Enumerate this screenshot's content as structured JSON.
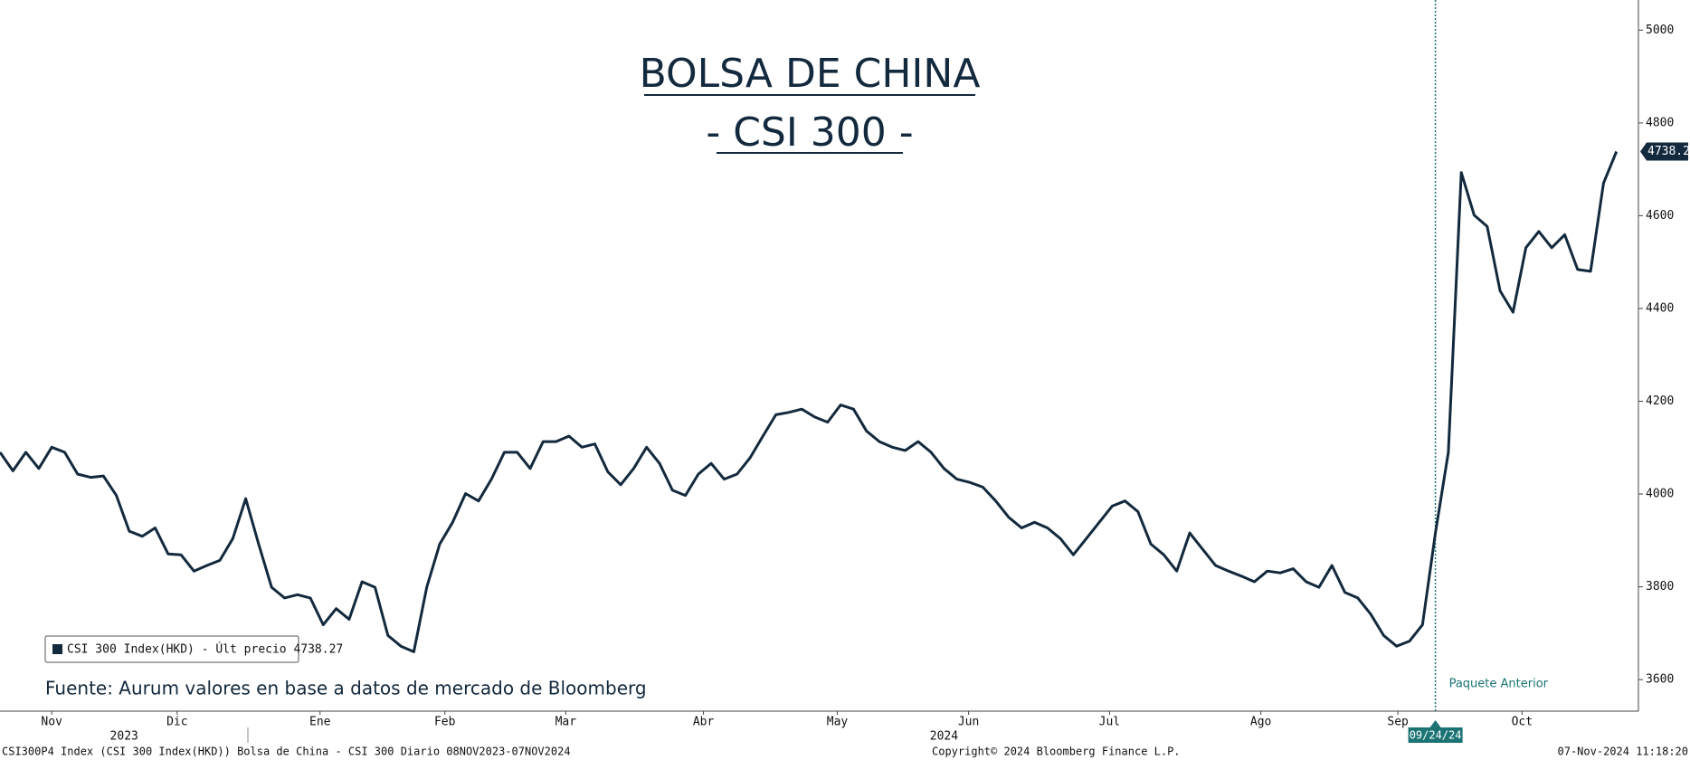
{
  "chart_data": {
    "type": "line",
    "title": "BOLSA DE CHINA",
    "subtitle": "- CSI 300 -",
    "series": [
      {
        "name": "CSI 300 Index(HKD) - Últ precio 4738.27",
        "color": "#13293d",
        "values": [
          4090,
          4050,
          4090,
          4055,
          4101,
          4090,
          4043,
          4036,
          4039,
          3997,
          3920,
          3909,
          3927,
          3871,
          3869,
          3834,
          3846,
          3857,
          3904,
          3990,
          3892,
          3799,
          3776,
          3783,
          3776,
          3718,
          3753,
          3730,
          3811,
          3799,
          3695,
          3672,
          3660,
          3799,
          3892,
          3939,
          4001,
          3985,
          4032,
          4090,
          4090,
          4055,
          4113,
          4113,
          4125,
          4101,
          4108,
          4048,
          4020,
          4055,
          4101,
          4066,
          4008,
          3997,
          4043,
          4066,
          4032,
          4043,
          4078,
          4125,
          4171,
          4176,
          4183,
          4166,
          4155,
          4192,
          4183,
          4136,
          4113,
          4101,
          4094,
          4113,
          4090,
          4055,
          4032,
          4025,
          4015,
          3985,
          3950,
          3927,
          3939,
          3927,
          3904,
          3869,
          3904,
          3939,
          3974,
          3985,
          3962,
          3892,
          3869,
          3834,
          3916,
          3881,
          3846,
          3834,
          3823,
          3811,
          3834,
          3830,
          3839,
          3811,
          3799,
          3846,
          3788,
          3776,
          3741,
          3695,
          3672,
          3683,
          3718,
          3916,
          4090,
          4693,
          4601,
          4577,
          4438,
          4392,
          4531,
          4566,
          4531,
          4559,
          4484,
          4480,
          4670,
          4738.27
        ]
      }
    ],
    "xlim": [
      0,
      126.7
    ],
    "xticks": [
      {
        "value": 4,
        "label": "Nov"
      },
      {
        "value": 13.7,
        "label": "Dic"
      },
      {
        "value": 24.75,
        "label": "Ene"
      },
      {
        "value": 34.4,
        "label": "Feb"
      },
      {
        "value": 43.75,
        "label": "Mar"
      },
      {
        "value": 54.4,
        "label": "Abr"
      },
      {
        "value": 64.75,
        "label": "May"
      },
      {
        "value": 74.9,
        "label": "Jun"
      },
      {
        "value": 85.8,
        "label": "Jul"
      },
      {
        "value": 97.5,
        "label": "Ago"
      },
      {
        "value": 108.1,
        "label": "Sep"
      },
      {
        "value": 117.7,
        "label": "Oct"
      }
    ],
    "years": [
      {
        "value": 9.6,
        "label": "2023"
      },
      {
        "value": 73,
        "label": "2024"
      }
    ],
    "ylim": [
      3532,
      5065
    ],
    "yticks": [
      3600,
      3800,
      4000,
      4200,
      4400,
      4600,
      4800,
      5000
    ],
    "event": {
      "index": 111,
      "label": "09/24/24",
      "annotation": "Paquete Anterior",
      "color": "#1b7373"
    },
    "source": "Fuente: Aurum valores en base a datos de mercado de Bloomberg",
    "footer": {
      "left": "CSI300P4 Index (CSI 300 Index(HKD)) Bolsa de China - CSI 300  Diario 08NOV2023-07NOV2024",
      "center": "Copyright© 2024 Bloomberg Finance L.P.",
      "right": "07-Nov-2024 11:18:20"
    }
  }
}
